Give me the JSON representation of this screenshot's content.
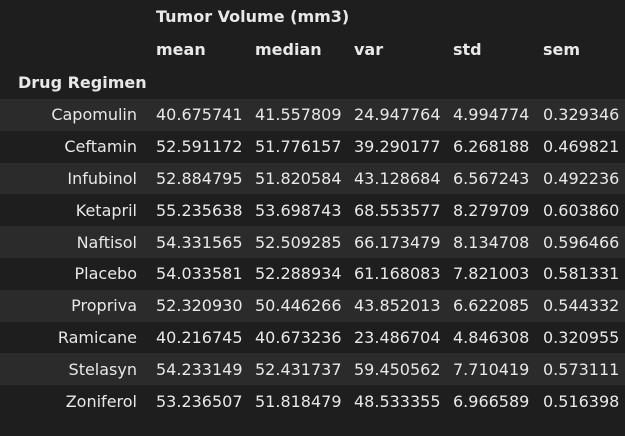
{
  "table": {
    "top_header": "Tumor Volume (mm3)",
    "columns": [
      "mean",
      "median",
      "var",
      "std",
      "sem"
    ],
    "index_name": "Drug Regimen",
    "rows": [
      {
        "label": "Capomulin",
        "values": [
          "40.675741",
          "41.557809",
          "24.947764",
          "4.994774",
          "0.329346"
        ]
      },
      {
        "label": "Ceftamin",
        "values": [
          "52.591172",
          "51.776157",
          "39.290177",
          "6.268188",
          "0.469821"
        ]
      },
      {
        "label": "Infubinol",
        "values": [
          "52.884795",
          "51.820584",
          "43.128684",
          "6.567243",
          "0.492236"
        ]
      },
      {
        "label": "Ketapril",
        "values": [
          "55.235638",
          "53.698743",
          "68.553577",
          "8.279709",
          "0.603860"
        ]
      },
      {
        "label": "Naftisol",
        "values": [
          "54.331565",
          "52.509285",
          "66.173479",
          "8.134708",
          "0.596466"
        ]
      },
      {
        "label": "Placebo",
        "values": [
          "54.033581",
          "52.288934",
          "61.168083",
          "7.821003",
          "0.581331"
        ]
      },
      {
        "label": "Propriva",
        "values": [
          "52.320930",
          "50.446266",
          "43.852013",
          "6.622085",
          "0.544332"
        ]
      },
      {
        "label": "Ramicane",
        "values": [
          "40.216745",
          "40.673236",
          "23.486704",
          "4.846308",
          "0.320955"
        ]
      },
      {
        "label": "Stelasyn",
        "values": [
          "54.233149",
          "52.431737",
          "59.450562",
          "7.710419",
          "0.573111"
        ]
      },
      {
        "label": "Zoniferol",
        "values": [
          "53.236507",
          "51.818479",
          "48.533355",
          "6.966589",
          "0.516398"
        ]
      }
    ]
  }
}
